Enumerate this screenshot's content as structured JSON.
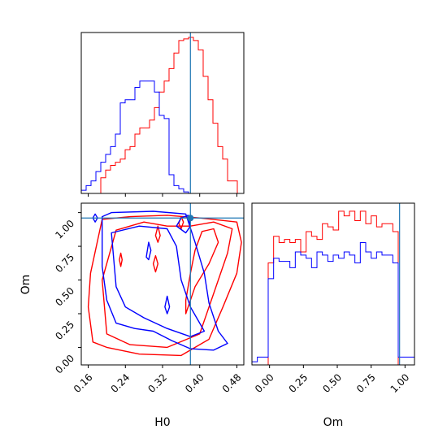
{
  "chart_data": {
    "type": "corner",
    "parameters": [
      "H0",
      "Om"
    ],
    "truths": {
      "H0": 0.38,
      "Om": 0.96
    },
    "colors": {
      "series_a": "#ff0000",
      "series_b": "#0000ff",
      "truth": "#1f77b4"
    },
    "H0": {
      "range": [
        0.145,
        0.495
      ],
      "ticks": [
        0.16,
        0.24,
        0.32,
        0.4,
        0.48
      ],
      "tick_labels": [
        "0.16",
        "0.24",
        "0.32",
        "0.40",
        "0.48"
      ],
      "xlabel": "H0"
    },
    "Om": {
      "range": [
        -0.13,
        1.07
      ],
      "ticks": [
        0.0,
        0.25,
        0.5,
        0.75,
        1.0
      ],
      "tick_labels": [
        "0.00",
        "0.25",
        "0.50",
        "0.75",
        "1.00"
      ],
      "label": "Om"
    },
    "hist_H0": {
      "bin_edges": [
        0.145,
        0.1555,
        0.166,
        0.1765,
        0.187,
        0.1975,
        0.208,
        0.2185,
        0.229,
        0.2395,
        0.25,
        0.2605,
        0.271,
        0.2815,
        0.292,
        0.3025,
        0.313,
        0.3235,
        0.334,
        0.3445,
        0.355,
        0.3655,
        0.376,
        0.3865,
        0.397,
        0.4075,
        0.418,
        0.4285,
        0.439,
        0.4495,
        0.46,
        0.4705,
        0.481,
        0.4915
      ],
      "series_a": [
        0,
        0,
        0,
        0,
        0.1,
        0.15,
        0.18,
        0.2,
        0.22,
        0.28,
        0.3,
        0.38,
        0.42,
        0.42,
        0.47,
        0.55,
        0.65,
        0.72,
        0.8,
        0.9,
        0.98,
        0.99,
        1.0,
        0.98,
        0.92,
        0.75,
        0.6,
        0.45,
        0.3,
        0.22,
        0.08,
        0.08,
        0
      ],
      "series_b": [
        0.02,
        0.05,
        0.08,
        0.14,
        0.2,
        0.25,
        0.3,
        0.38,
        0.58,
        0.6,
        0.6,
        0.68,
        0.72,
        0.72,
        0.72,
        0.65,
        0.5,
        0.48,
        0.12,
        0.05,
        0.03,
        0.01,
        0,
        0,
        0,
        0,
        0,
        0,
        0,
        0,
        0,
        0,
        0
      ]
    },
    "hist_Om": {
      "bin_edges": [
        -0.13,
        -0.09,
        -0.05,
        -0.01,
        0.03,
        0.07,
        0.11,
        0.15,
        0.19,
        0.23,
        0.27,
        0.31,
        0.35,
        0.39,
        0.43,
        0.47,
        0.51,
        0.55,
        0.59,
        0.63,
        0.67,
        0.71,
        0.75,
        0.79,
        0.83,
        0.87,
        0.91,
        0.95,
        0.99,
        1.03,
        1.07
      ],
      "series_a": [
        0,
        0,
        0,
        0.65,
        0.82,
        0.78,
        0.8,
        0.78,
        0.8,
        0.72,
        0.85,
        0.82,
        0.8,
        0.9,
        0.88,
        0.86,
        0.98,
        0.95,
        0.98,
        0.92,
        0.98,
        0.9,
        0.95,
        0.88,
        0.9,
        0.9,
        0.85,
        0,
        0,
        0
      ],
      "series_b": [
        0.02,
        0.05,
        0.05,
        0.55,
        0.68,
        0.66,
        0.66,
        0.62,
        0.72,
        0.7,
        0.68,
        0.62,
        0.72,
        0.7,
        0.66,
        0.7,
        0.68,
        0.72,
        0.7,
        0.65,
        0.78,
        0.72,
        0.68,
        0.72,
        0.7,
        0.7,
        0.65,
        0.05,
        0.05,
        0.05
      ]
    },
    "contours": {
      "series_a": [
        [
          [
            0.17,
            0.04
          ],
          [
            0.2,
            0.0
          ],
          [
            0.27,
            -0.05
          ],
          [
            0.36,
            -0.06
          ],
          [
            0.42,
            0.06
          ],
          [
            0.45,
            0.3
          ],
          [
            0.48,
            0.55
          ],
          [
            0.49,
            0.78
          ],
          [
            0.48,
            0.93
          ],
          [
            0.4,
            0.96
          ],
          [
            0.33,
            0.98
          ],
          [
            0.25,
            0.97
          ],
          [
            0.19,
            0.95
          ],
          [
            0.165,
            0.55
          ],
          [
            0.16,
            0.3
          ],
          [
            0.17,
            0.04
          ]
        ],
        [
          [
            0.2,
            0.1
          ],
          [
            0.25,
            0.02
          ],
          [
            0.33,
            0.0
          ],
          [
            0.4,
            0.1
          ],
          [
            0.43,
            0.4
          ],
          [
            0.46,
            0.7
          ],
          [
            0.47,
            0.88
          ],
          [
            0.43,
            0.93
          ],
          [
            0.38,
            0.9
          ],
          [
            0.33,
            0.9
          ],
          [
            0.28,
            0.93
          ],
          [
            0.22,
            0.87
          ],
          [
            0.19,
            0.5
          ],
          [
            0.2,
            0.1
          ]
        ],
        [
          [
            0.37,
            0.25
          ],
          [
            0.39,
            0.45
          ],
          [
            0.42,
            0.62
          ],
          [
            0.44,
            0.78
          ],
          [
            0.43,
            0.88
          ],
          [
            0.405,
            0.86
          ],
          [
            0.39,
            0.72
          ],
          [
            0.38,
            0.55
          ],
          [
            0.37,
            0.35
          ],
          [
            0.37,
            0.25
          ]
        ],
        [
          [
            0.305,
            0.83
          ],
          [
            0.31,
            0.9
          ],
          [
            0.315,
            0.83
          ],
          [
            0.31,
            0.78
          ],
          [
            0.305,
            0.83
          ]
        ],
        [
          [
            0.355,
            0.92
          ],
          [
            0.36,
            0.97
          ],
          [
            0.365,
            0.93
          ],
          [
            0.36,
            0.88
          ],
          [
            0.355,
            0.92
          ]
        ],
        [
          [
            0.3,
            0.62
          ],
          [
            0.305,
            0.68
          ],
          [
            0.31,
            0.62
          ],
          [
            0.305,
            0.56
          ],
          [
            0.3,
            0.62
          ]
        ],
        [
          [
            0.227,
            0.65
          ],
          [
            0.23,
            0.7
          ],
          [
            0.233,
            0.65
          ],
          [
            0.23,
            0.6
          ],
          [
            0.227,
            0.65
          ]
        ]
      ],
      "series_b": [
        [
          [
            0.19,
            0.97
          ],
          [
            0.21,
            1.0
          ],
          [
            0.3,
            1.01
          ],
          [
            0.37,
            0.99
          ],
          [
            0.39,
            0.78
          ],
          [
            0.41,
            0.55
          ],
          [
            0.42,
            0.33
          ],
          [
            0.44,
            0.12
          ],
          [
            0.46,
            0.03
          ],
          [
            0.43,
            -0.02
          ],
          [
            0.38,
            -0.01
          ],
          [
            0.34,
            0.05
          ],
          [
            0.3,
            0.12
          ],
          [
            0.26,
            0.14
          ],
          [
            0.22,
            0.18
          ],
          [
            0.2,
            0.35
          ],
          [
            0.19,
            0.6
          ],
          [
            0.19,
            0.97
          ]
        ],
        [
          [
            0.21,
            0.85
          ],
          [
            0.27,
            0.9
          ],
          [
            0.33,
            0.88
          ],
          [
            0.35,
            0.75
          ],
          [
            0.36,
            0.5
          ],
          [
            0.38,
            0.3
          ],
          [
            0.41,
            0.12
          ],
          [
            0.38,
            0.08
          ],
          [
            0.33,
            0.14
          ],
          [
            0.28,
            0.22
          ],
          [
            0.24,
            0.3
          ],
          [
            0.22,
            0.45
          ],
          [
            0.21,
            0.85
          ]
        ],
        [
          [
            0.35,
            0.9
          ],
          [
            0.36,
            0.96
          ],
          [
            0.375,
            0.98
          ],
          [
            0.38,
            0.9
          ],
          [
            0.37,
            0.85
          ],
          [
            0.35,
            0.9
          ]
        ],
        [
          [
            0.285,
            0.67
          ],
          [
            0.29,
            0.78
          ],
          [
            0.295,
            0.72
          ],
          [
            0.29,
            0.65
          ],
          [
            0.285,
            0.67
          ]
        ],
        [
          [
            0.325,
            0.3
          ],
          [
            0.33,
            0.38
          ],
          [
            0.335,
            0.3
          ],
          [
            0.33,
            0.25
          ],
          [
            0.325,
            0.3
          ]
        ],
        [
          [
            0.17,
            0.96
          ],
          [
            0.175,
            0.99
          ],
          [
            0.18,
            0.96
          ],
          [
            0.175,
            0.93
          ],
          [
            0.17,
            0.96
          ]
        ]
      ]
    }
  }
}
